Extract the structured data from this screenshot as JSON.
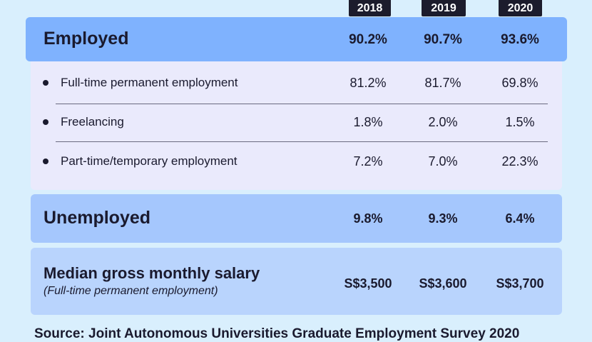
{
  "chart_data": {
    "type": "table",
    "columns": [
      "2018",
      "2019",
      "2020"
    ],
    "rows": [
      {
        "label": "Employed",
        "values": [
          "90.2%",
          "90.7%",
          "93.6%"
        ]
      },
      {
        "label": "Full-time permanent employment",
        "values": [
          "81.2%",
          "81.7%",
          "69.8%"
        ]
      },
      {
        "label": "Freelancing",
        "values": [
          "1.8%",
          "2.0%",
          "1.5%"
        ]
      },
      {
        "label": "Part-time/temporary employment",
        "values": [
          "7.2%",
          "7.0%",
          "22.3%"
        ]
      },
      {
        "label": "Unemployed",
        "values": [
          "9.8%",
          "9.3%",
          "6.4%"
        ]
      },
      {
        "label": "Median gross monthly salary",
        "sublabel": "(Full-time permanent employment)",
        "values": [
          "S$3,500",
          "S$3,600",
          "S$3,700"
        ]
      }
    ],
    "source": "Source: Joint Autonomous Universities Graduate Employment Survey 2020",
    "colors": {
      "background": "#d9effd",
      "employed": "#7fb2fe",
      "breakdown": "#eaeafc",
      "unemployed": "#a5c7fd",
      "salary": "#b9d4fd",
      "badge": "#1c1c2c"
    }
  }
}
